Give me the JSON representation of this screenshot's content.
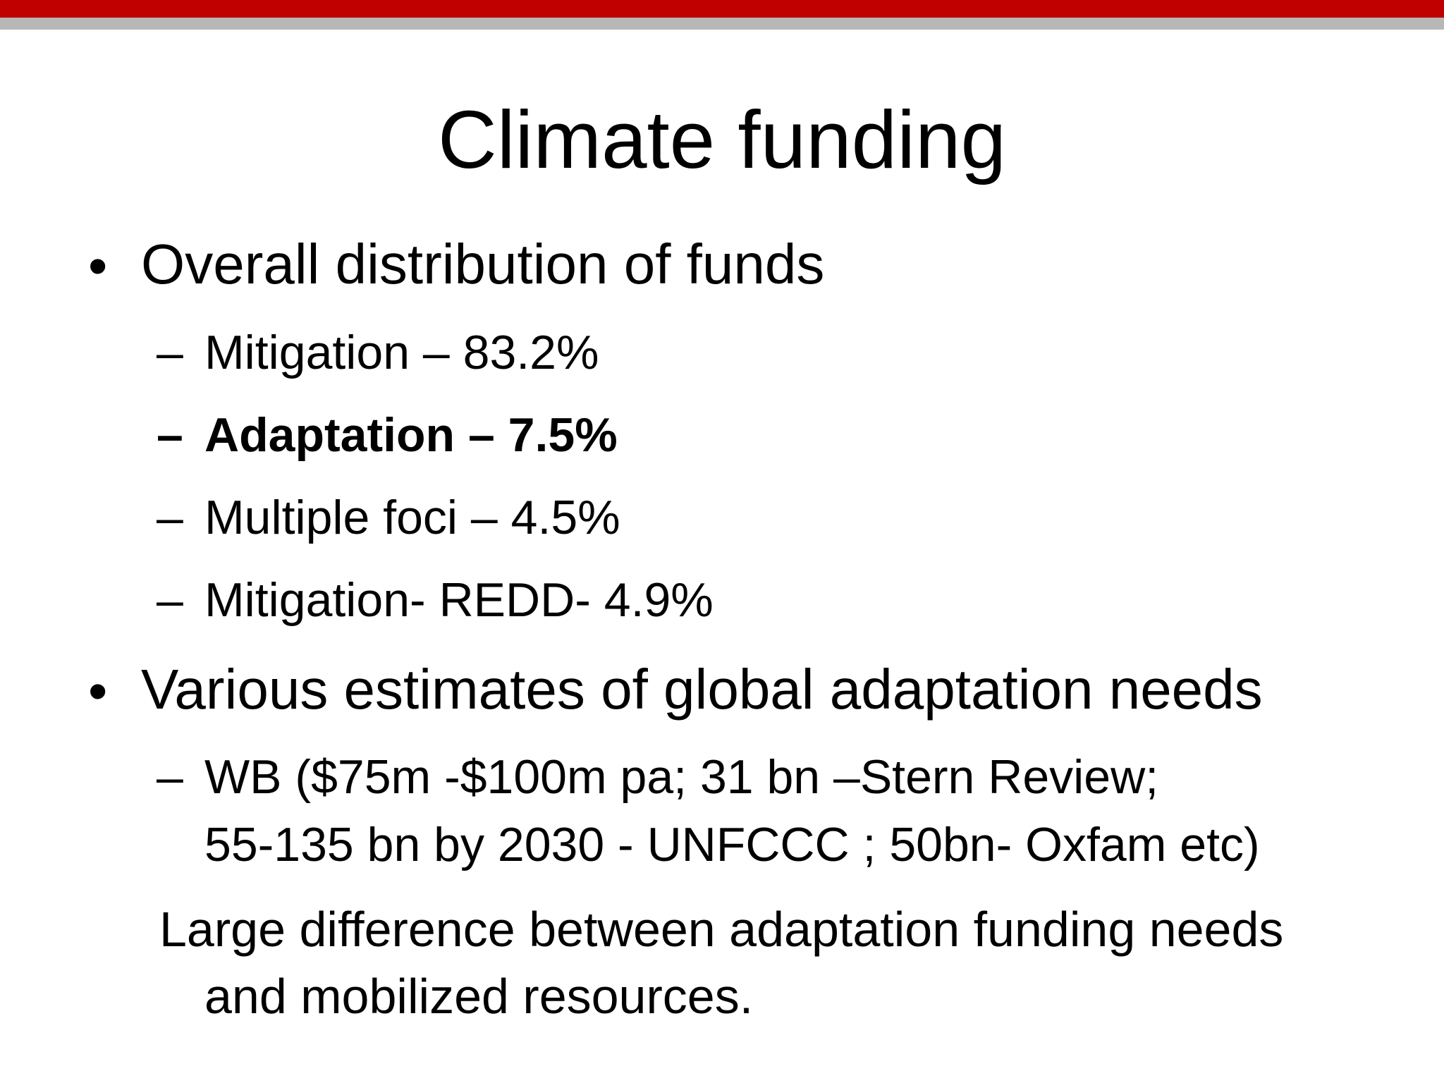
{
  "slide": {
    "title": "Climate funding",
    "bullets": [
      {
        "symbol": "•",
        "text": "Overall distribution of funds",
        "subitems": [
          {
            "symbol": "–",
            "text": "Mitigation – 83.2%"
          },
          {
            "symbol": "–",
            "text": "Adaptation – 7.5%"
          },
          {
            "symbol": "–",
            "text": "Multiple foci – 4.5%"
          },
          {
            "symbol": "–",
            "text": "Mitigation- REDD- 4.9%"
          }
        ]
      },
      {
        "symbol": "•",
        "text": "Various estimates of global adaptation needs",
        "subitems": [
          {
            "symbol": "–",
            "line1": "WB ($75m -$100m pa; 31 bn –Stern Review;",
            "line2": "55-135 bn by 2030 - UNFCCC ; 50bn- Oxfam etc)"
          }
        ],
        "note_line1": "Large difference between  adaptation funding needs",
        "note_line2": "and mobilized resources."
      }
    ]
  },
  "colors": {
    "top_bar_red": "#c00000",
    "top_bar_gray": "#b7b7b7",
    "text": "#000000",
    "background": "#ffffff"
  }
}
